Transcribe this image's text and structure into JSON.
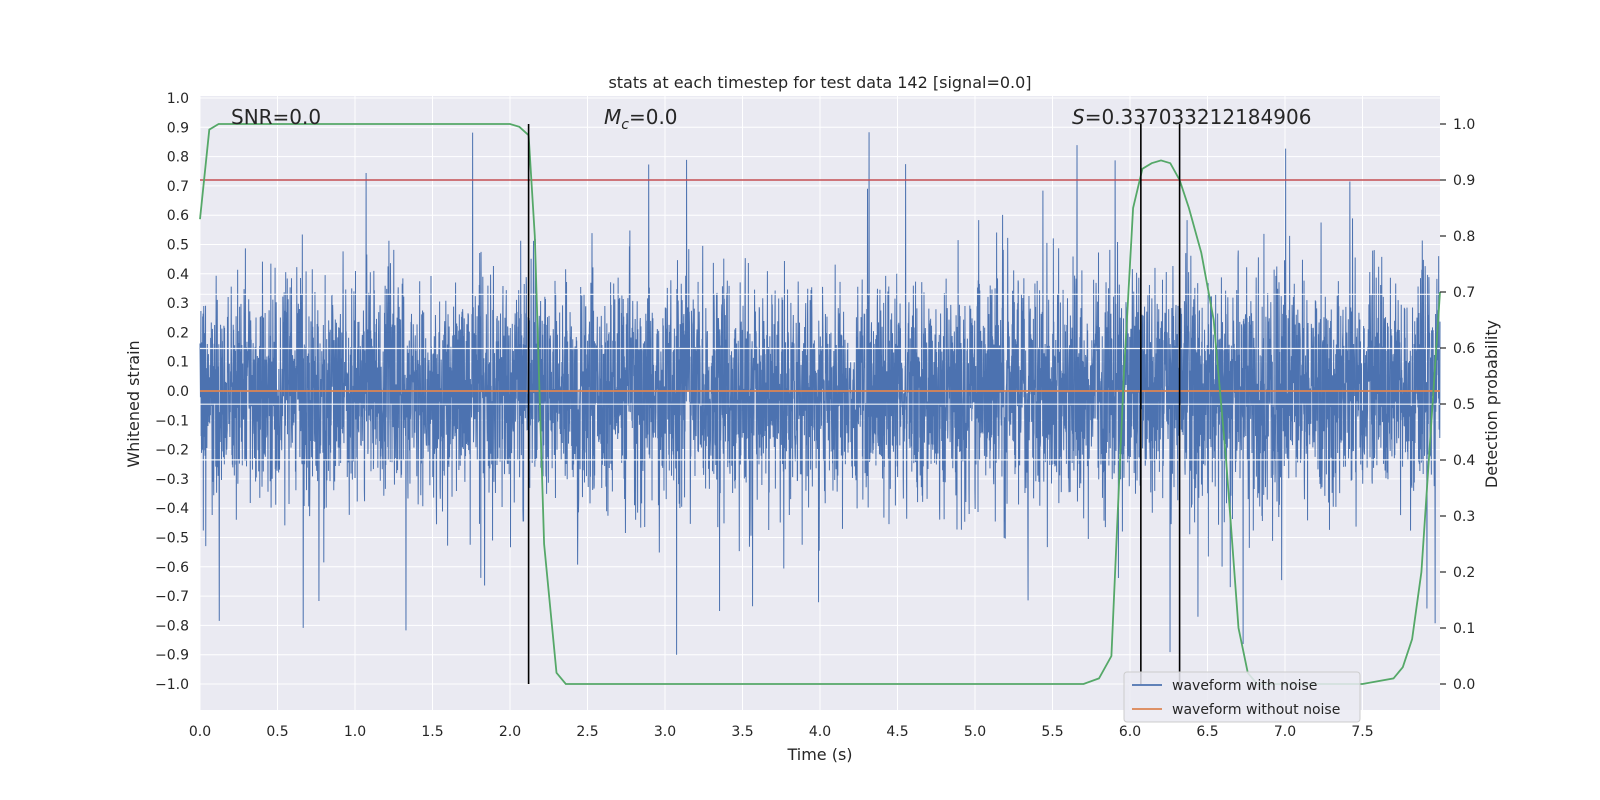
{
  "chart_data": {
    "type": "line",
    "title": "stats at each timestep for test data 142 [signal=0.0]",
    "xlabel": "Time (s)",
    "ylabel": "Whitened strain",
    "y2label": "Detection probability",
    "xlim": [
      0.0,
      8.0
    ],
    "ylim": [
      -1.0,
      1.0
    ],
    "y2lim": [
      0.0,
      1.0
    ],
    "xticks": [
      "0.0",
      "0.5",
      "1.0",
      "1.5",
      "2.0",
      "2.5",
      "3.0",
      "3.5",
      "4.0",
      "4.5",
      "5.0",
      "5.5",
      "6.0",
      "6.5",
      "7.0",
      "7.5"
    ],
    "yticks": [
      "1.0",
      "0.9",
      "0.8",
      "0.7",
      "0.6",
      "0.5",
      "0.4",
      "0.3",
      "0.2",
      "0.1",
      "0.0",
      "−0.1",
      "−0.2",
      "−0.3",
      "−0.4",
      "−0.5",
      "−0.6",
      "−0.7",
      "−0.8",
      "−0.9",
      "−1.0"
    ],
    "y2ticks": [
      "1.0",
      "0.9",
      "0.8",
      "0.7",
      "0.6",
      "0.5",
      "0.4",
      "0.3",
      "0.2",
      "0.1",
      "0.0"
    ],
    "annotations": {
      "snr": "SNR=0.0",
      "mc_symbol": "M",
      "mc_sub": "c",
      "mc_value": "=0.0",
      "s_symbol": "S",
      "s_value": "=0.337033212184906"
    },
    "legend": {
      "position": "lower-right",
      "entries": [
        {
          "label": "waveform with noise",
          "color": "#4c72b0"
        },
        {
          "label": "waveform without noise",
          "color": "#dd8452"
        }
      ]
    },
    "series": [
      {
        "name": "waveform with noise",
        "kind": "noise",
        "color": "#4c72b0"
      },
      {
        "name": "waveform without noise",
        "kind": "flat",
        "value": 0.0,
        "color": "#dd8452"
      },
      {
        "name": "detection probability",
        "kind": "line",
        "color": "#55a868",
        "x": [
          0.0,
          0.06,
          0.12,
          0.3,
          1.0,
          1.5,
          1.9,
          2.0,
          2.06,
          2.12,
          2.16,
          2.22,
          2.3,
          2.36,
          2.42,
          2.5,
          3.0,
          4.0,
          5.0,
          5.7,
          5.8,
          5.88,
          5.96,
          6.02,
          6.08,
          6.14,
          6.2,
          6.26,
          6.32,
          6.38,
          6.46,
          6.54,
          6.62,
          6.7,
          6.76,
          6.82,
          6.9,
          7.0,
          7.5,
          7.7,
          7.76,
          7.82,
          7.88,
          7.94,
          8.0
        ],
        "values": [
          0.83,
          0.99,
          1.0,
          1.0,
          1.0,
          1.0,
          1.0,
          1.0,
          0.995,
          0.98,
          0.8,
          0.25,
          0.02,
          0.0,
          0.0,
          0.0,
          0.0,
          0.0,
          0.0,
          0.0,
          0.01,
          0.05,
          0.55,
          0.85,
          0.92,
          0.93,
          0.935,
          0.93,
          0.9,
          0.85,
          0.77,
          0.65,
          0.4,
          0.1,
          0.02,
          0.0,
          0.0,
          0.0,
          0.0,
          0.01,
          0.03,
          0.08,
          0.2,
          0.45,
          0.7
        ]
      },
      {
        "name": "threshold",
        "kind": "hline",
        "y2": 0.9,
        "color": "#c44e52"
      }
    ],
    "vlines": [
      2.12,
      6.07,
      6.32
    ],
    "noise": {
      "seed": 142,
      "max_abs_estimate": 0.9,
      "envelope_dense": 0.33
    }
  }
}
